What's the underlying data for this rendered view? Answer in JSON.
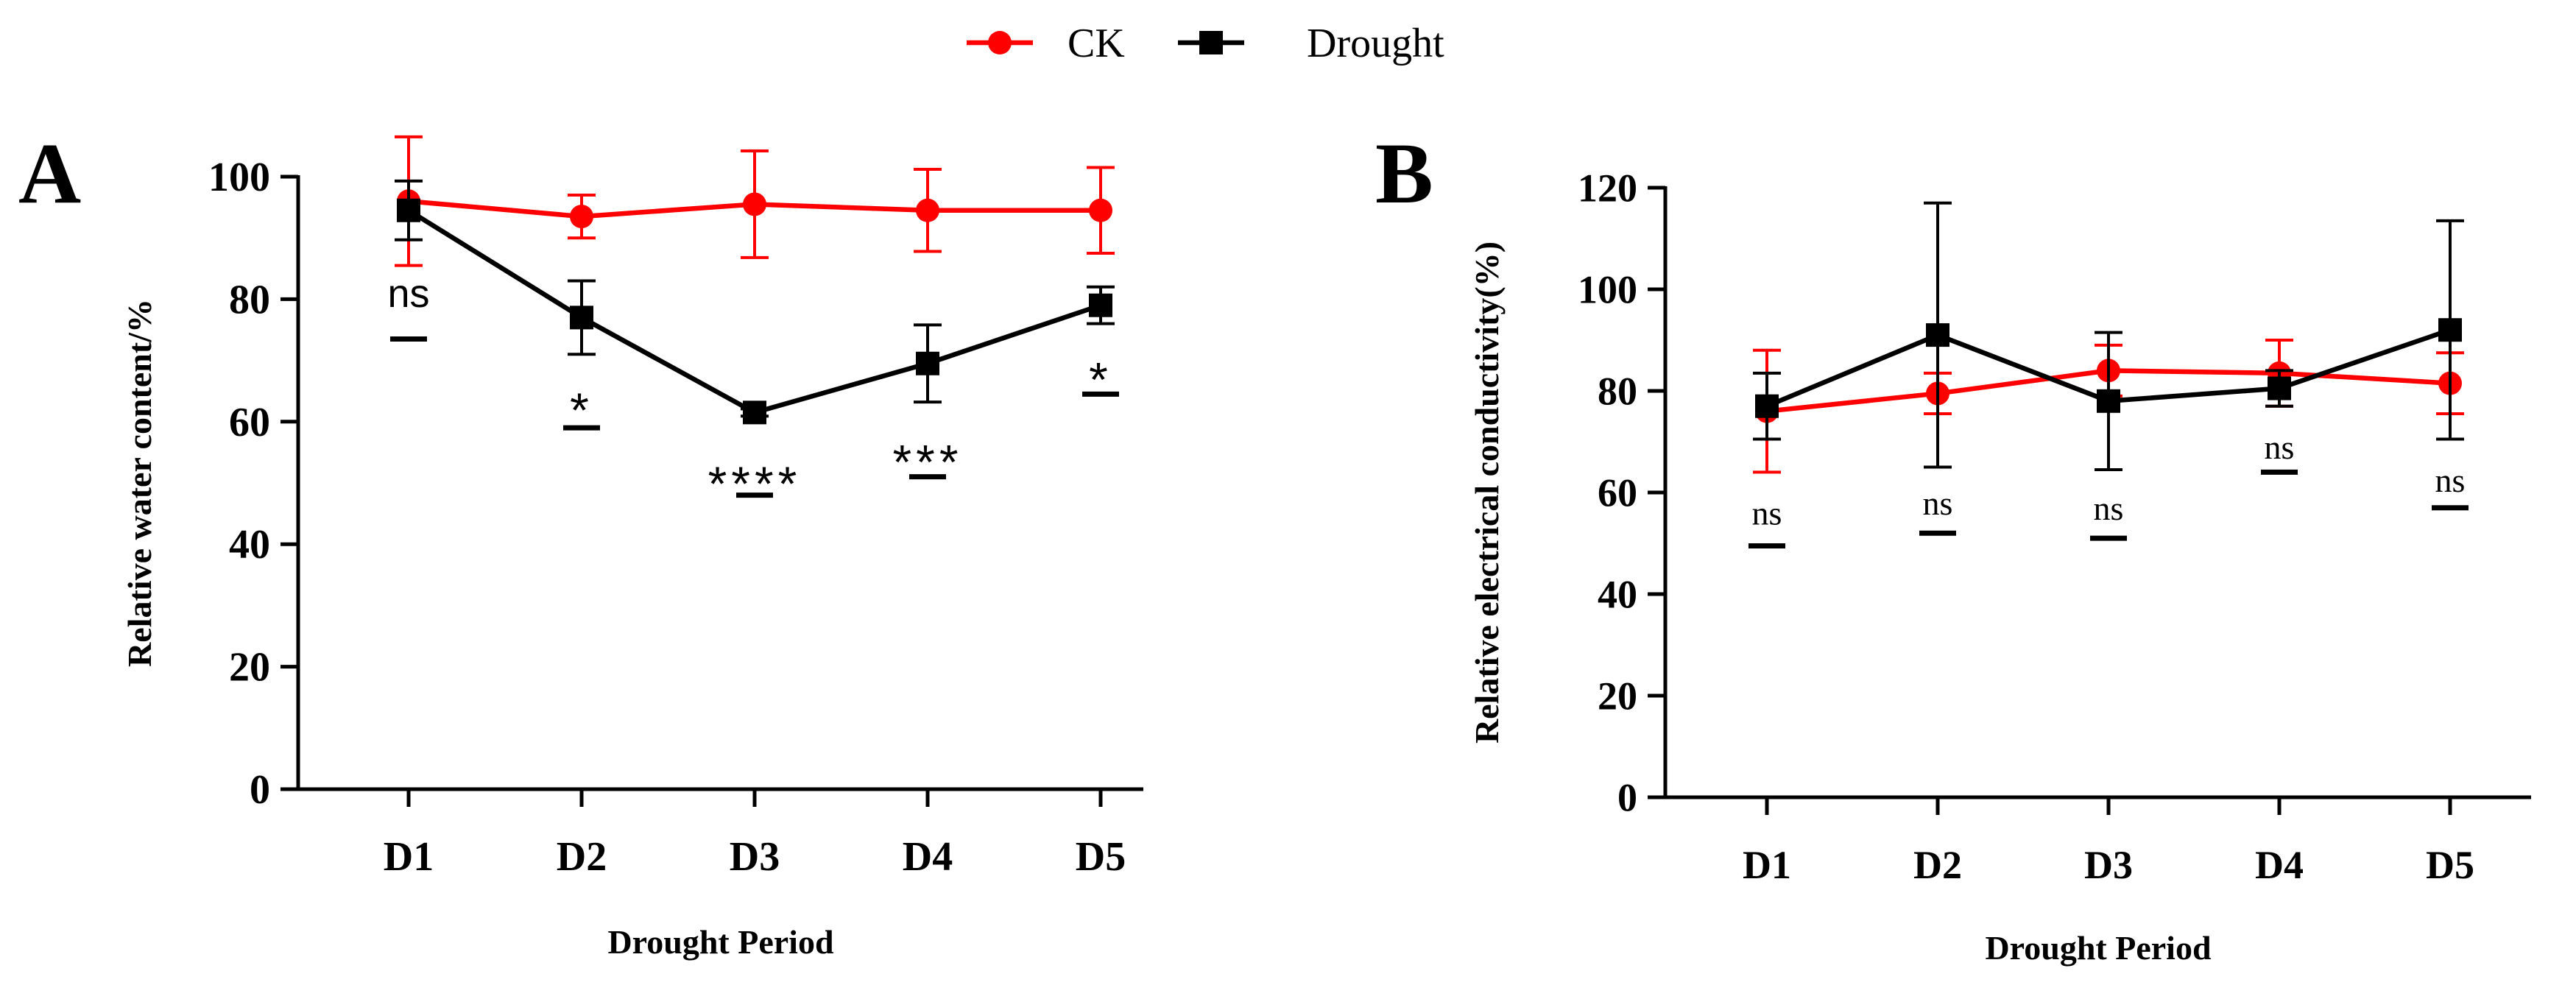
{
  "legend": {
    "placement": "top-center",
    "items": [
      {
        "name": "CK",
        "color": "#ff0000",
        "marker": "circle"
      },
      {
        "name": "Drought",
        "color": "#000000",
        "marker": "square"
      }
    ]
  },
  "chart_data": [
    {
      "type": "line",
      "panel_label": "A",
      "title": "",
      "xlabel": "Drought Period",
      "ylabel": "Relative water content/%",
      "categories": [
        "D1",
        "D2",
        "D3",
        "D4",
        "D5"
      ],
      "ylim": [
        0,
        100
      ],
      "yticks": [
        0,
        20,
        40,
        60,
        80,
        100
      ],
      "grid": false,
      "series": [
        {
          "name": "CK",
          "color": "#ff0000",
          "marker": "circle",
          "values": [
            96,
            93.5,
            95.5,
            94.5,
            94.5
          ],
          "errors": [
            10.5,
            3.5,
            8.7,
            6.7,
            7
          ]
        },
        {
          "name": "Drought",
          "color": "#000000",
          "marker": "square",
          "values": [
            94.5,
            77,
            61.5,
            69.5,
            79
          ],
          "errors": [
            4.8,
            6,
            0.6,
            6.3,
            3
          ]
        }
      ],
      "annotations": [
        {
          "category": "D1",
          "text": "ns",
          "text_y": 81,
          "bar_y": 73.5
        },
        {
          "category": "D2",
          "text": "*",
          "text_y": 63.5,
          "bar_y": 59
        },
        {
          "category": "D3",
          "text": "****",
          "text_y": 51.5,
          "bar_y": 48
        },
        {
          "category": "D4",
          "text": "***",
          "text_y": 55,
          "bar_y": 51
        },
        {
          "category": "D5",
          "text": "*",
          "text_y": 68.5,
          "bar_y": 64.5
        }
      ]
    },
    {
      "type": "line",
      "panel_label": "B",
      "title": "",
      "xlabel": "Drought Period",
      "ylabel": "Relative electrical conductivity(%)",
      "categories": [
        "D1",
        "D2",
        "D3",
        "D4",
        "D5"
      ],
      "ylim": [
        0,
        120
      ],
      "yticks": [
        0,
        20,
        40,
        60,
        80,
        100,
        120
      ],
      "grid": false,
      "series": [
        {
          "name": "CK",
          "color": "#ff0000",
          "marker": "circle",
          "values": [
            76,
            79.5,
            84,
            83.5,
            81.5
          ],
          "errors": [
            12,
            4,
            5,
            6.5,
            6
          ]
        },
        {
          "name": "Drought",
          "color": "#000000",
          "marker": "square",
          "values": [
            77,
            91,
            78,
            80.5,
            92
          ],
          "errors": [
            6.5,
            26,
            13.5,
            3.5,
            21.5
          ]
        }
      ],
      "annotations": [
        {
          "category": "D1",
          "text": "ns",
          "text_y": 56,
          "bar_y": 49.5
        },
        {
          "category": "D2",
          "text": "ns",
          "text_y": 58,
          "bar_y": 52
        },
        {
          "category": "D3",
          "text": "ns",
          "text_y": 57,
          "bar_y": 51
        },
        {
          "category": "D4",
          "text": "ns",
          "text_y": 69,
          "bar_y": 64
        },
        {
          "category": "D5",
          "text": "ns",
          "text_y": 62.5,
          "bar_y": 57
        }
      ]
    }
  ]
}
